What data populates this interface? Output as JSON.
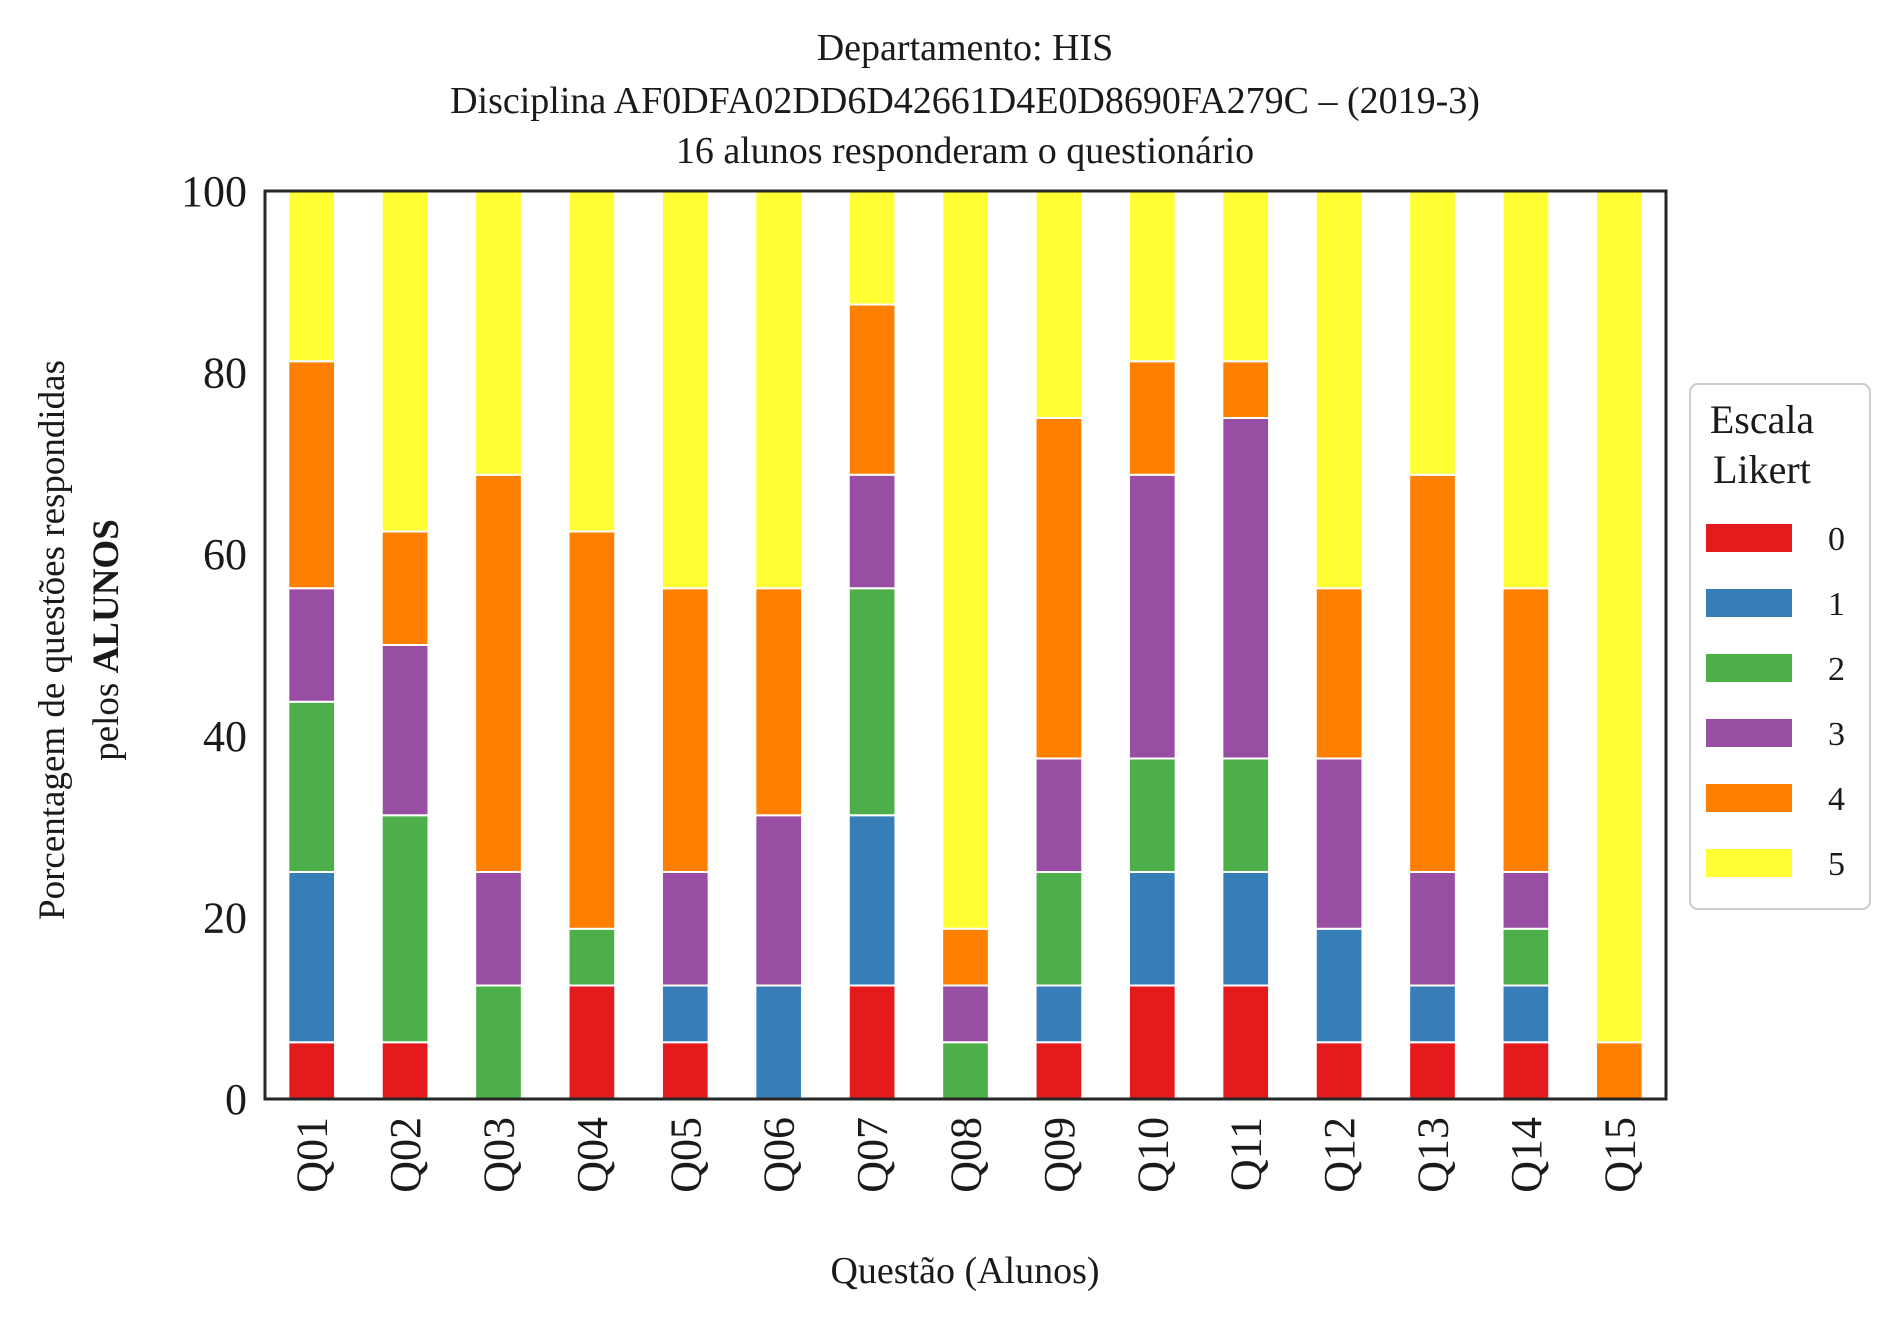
{
  "chart_data": {
    "type": "bar",
    "stacked": true,
    "title": [
      "Departamento: HIS",
      "Disciplina AF0DFA02DD6D42661D4E0D8690FA279C – (2019-3)",
      "16 alunos responderam o questionário"
    ],
    "xlabel": "Questão (Alunos)",
    "ylabel_line1": "Porcentagem de questões respondidas",
    "ylabel_line2_prefix": "pelos ",
    "ylabel_line2_bold": "ALUNOS",
    "ylim": [
      0,
      100
    ],
    "yticks": [
      "0",
      "20",
      "40",
      "60",
      "80",
      "100"
    ],
    "categories": [
      "Q01",
      "Q02",
      "Q03",
      "Q04",
      "Q05",
      "Q06",
      "Q07",
      "Q08",
      "Q09",
      "Q10",
      "Q11",
      "Q12",
      "Q13",
      "Q14",
      "Q15"
    ],
    "legend": {
      "title_line1": "Escala",
      "title_line2": "Likert",
      "placement": "right"
    },
    "series": [
      {
        "name": "0",
        "color": "#e41a1c",
        "values": [
          6.25,
          6.25,
          0,
          12.5,
          6.25,
          0,
          12.5,
          0,
          6.25,
          12.5,
          12.5,
          6.25,
          6.25,
          6.25,
          0
        ]
      },
      {
        "name": "1",
        "color": "#377eb8",
        "values": [
          18.75,
          0,
          0,
          0,
          6.25,
          12.5,
          18.75,
          0,
          6.25,
          12.5,
          12.5,
          12.5,
          6.25,
          6.25,
          0
        ]
      },
      {
        "name": "2",
        "color": "#4daf4a",
        "values": [
          18.75,
          25,
          12.5,
          6.25,
          0,
          0,
          25,
          6.25,
          12.5,
          12.5,
          12.5,
          0,
          0,
          6.25,
          0
        ]
      },
      {
        "name": "3",
        "color": "#984ea3",
        "values": [
          12.5,
          18.75,
          12.5,
          0,
          12.5,
          18.75,
          12.5,
          6.25,
          12.5,
          31.25,
          37.5,
          18.75,
          12.5,
          6.25,
          0
        ]
      },
      {
        "name": "4",
        "color": "#ff7f00",
        "values": [
          25,
          12.5,
          43.75,
          43.75,
          31.25,
          25,
          18.75,
          6.25,
          37.5,
          12.5,
          6.25,
          18.75,
          43.75,
          31.25,
          6.25
        ]
      },
      {
        "name": "5",
        "color": "#ffff33",
        "values": [
          18.75,
          37.5,
          31.25,
          37.5,
          43.75,
          43.75,
          12.5,
          81.25,
          25,
          18.75,
          18.75,
          43.75,
          31.25,
          43.75,
          93.75
        ]
      }
    ]
  }
}
